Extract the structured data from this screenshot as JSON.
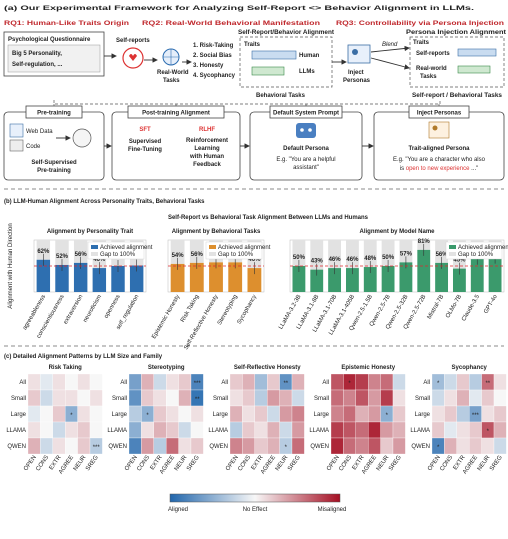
{
  "framework": {
    "title": "(a) Our Experimental  Framework for Analyzing Self-Report <> Behavior Alignment in LLMs.",
    "rq1": "RQ1: Human-Like Traits Origin",
    "rq2": "RQ2: Real-World Behavioral Manifestation",
    "rq3": "RQ3: Controllability via Persona Injection",
    "questionnaire": {
      "title": "Psychological Questionnaire",
      "lines": [
        "Big 5 Personality,",
        "Self-regulation, ..."
      ]
    },
    "self_reports": "Self-reports",
    "real_world_tasks": [
      "Real-World",
      "Tasks"
    ],
    "task_list": [
      "1. Risk-Taking",
      "2. Social Bias",
      "3. Honesty",
      "4. Sycophancy"
    ],
    "alignment_panel": {
      "title": "Self-Report/Behavior Alignment",
      "traits": "Traits",
      "human": "Human",
      "llms": "LLMs",
      "footer": "Behavioral Tasks"
    },
    "inject": [
      "Inject",
      "Personas"
    ],
    "persona_panel": {
      "title": "Persona Injection Alignment",
      "traits": "Traits",
      "blend": "Blend",
      "self_reports": "Self-reports",
      "real_world": [
        "Real-world",
        "Tasks"
      ],
      "footer": "Self-report / Behavioral Tasks"
    },
    "pretraining": {
      "title": "Pre-training",
      "web": "Web Data",
      "code": "Code",
      "caption": [
        "Self-Supervised",
        "Pre-training"
      ]
    },
    "posttraining": {
      "title": "Post-training Alignment",
      "sft": "SFT",
      "sft_caption": [
        "Supervised",
        "Fine-Tuning"
      ],
      "rlhf": "RLHF",
      "rlhf_caption": [
        "Reinforcement",
        "Learning",
        "with Human",
        "Feedback"
      ]
    },
    "default_prompt": {
      "title": "Default System Prompt",
      "persona": "Default Persona",
      "example": [
        "E.g. \"You are a helpful",
        "assistant\""
      ]
    },
    "inject_box": {
      "title": "Inject Personas",
      "persona": "Trait-aligned Persona",
      "example": [
        "E.g. \"You are a character who also",
        "is "
      ],
      "highlight": "open to new experience",
      "example_end": " ...\""
    }
  },
  "figure_b": {
    "section_title": "(b) LLM-Human Alignment Across Personality Traits, Behavioral Tasks",
    "title": "Self-Report vs Behavioral Task Alignment Between LLMs and Humans",
    "ylabel": "Alignment with Human Direction"
  },
  "figure_c": {
    "section_title": "(c) Detailed Alignment Patterns by LLM Size and Family",
    "colorbar_labels": [
      "Aligned",
      "No Effect",
      "Misaligned"
    ],
    "zlim": [
      -1,
      1
    ]
  },
  "chart_data": [
    {
      "type": "bar",
      "title": "Alignment by Personality Trait",
      "categories": [
        "agreeableness",
        "conscientiousness",
        "extraversion",
        "neuroticism",
        "openness",
        "self_regulation"
      ],
      "series": [
        {
          "name": "Achieved alignment",
          "color": "#2e6fb0",
          "values": [
            62,
            52,
            56,
            46,
            50,
            51
          ],
          "value_labels": [
            "62%",
            "52%",
            "56%",
            "46%",
            "50%",
            "51%"
          ]
        }
      ],
      "gap": {
        "name": "Gap to 100%",
        "color": "#e2e2e2"
      },
      "ylim": [
        0,
        100
      ],
      "reference_line": 50
    },
    {
      "type": "bar",
      "title": "Alignment by Behavioral Tasks",
      "categories": [
        "Epistemic Honesty",
        "Risk Taking",
        "Self-Reflective Honesty",
        "Stereotyping",
        "Sycophancy"
      ],
      "series": [
        {
          "name": "Achieved alignment",
          "color": "#dd8f2e",
          "values": [
            54,
            56,
            57,
            57,
            46
          ],
          "value_labels": [
            "54%",
            "56%",
            "57%",
            "57%",
            "46%"
          ]
        }
      ],
      "gap": {
        "name": "Gap to 100%",
        "color": "#e2e2e2"
      },
      "ylim": [
        0,
        100
      ],
      "reference_line": 50
    },
    {
      "type": "bar",
      "title": "Alignment by Model Name",
      "categories": [
        "LLaMA-3.2-3B",
        "LLaMA-3.1-8B",
        "LLaMA-3.1-70B",
        "LLaMA-3.1-405B",
        "Qwen-2.5-1.5B",
        "Qwen-2.5-7B",
        "Qwen-2.5-32B",
        "Qwen-2.5-72B",
        "Mistral-7B",
        "OLMo-7B",
        "Claude-3.5",
        "GPT-4o"
      ],
      "series": [
        {
          "name": "Achieved alignment",
          "color": "#3b9a6c",
          "values": [
            50,
            43,
            46,
            46,
            48,
            50,
            57,
            81,
            56,
            45,
            64,
            66
          ],
          "value_labels": [
            "50%",
            "43%",
            "46%",
            "46%",
            "48%",
            "50%",
            "57%",
            "81%",
            "56%",
            "45%",
            "64%",
            "66%"
          ]
        }
      ],
      "gap": {
        "name": "Gap to 100%",
        "color": "#e2e2e2"
      },
      "ylim": [
        0,
        100
      ],
      "reference_line": 50
    },
    {
      "type": "heatmap",
      "title": "Risk Taking",
      "rows": [
        "All",
        "Small",
        "Large",
        "LLAMA",
        "QWEN"
      ],
      "columns": [
        "OPEN",
        "CONS",
        "EXTR",
        "AGREE",
        "NEUR",
        "SREG"
      ],
      "values": [
        [
          0.1,
          -0.1,
          0.1,
          0.0,
          0.1,
          0.0
        ],
        [
          0.2,
          -0.2,
          0.1,
          0.1,
          0.0,
          0.1
        ],
        [
          -0.1,
          0.0,
          0.2,
          -0.5,
          0.1,
          0.0
        ],
        [
          0.1,
          0.0,
          -0.2,
          0.1,
          0.2,
          0.0
        ],
        [
          0.3,
          -0.2,
          0.1,
          0.0,
          0.2,
          -0.3
        ]
      ],
      "stars": [
        [
          null,
          null,
          null,
          null,
          null,
          null
        ],
        [
          null,
          null,
          null,
          null,
          null,
          null
        ],
        [
          null,
          null,
          null,
          "*",
          null,
          null
        ],
        [
          null,
          null,
          null,
          null,
          null,
          null
        ],
        [
          null,
          null,
          null,
          null,
          null,
          "***"
        ]
      ]
    },
    {
      "type": "heatmap",
      "title": "Stereotyping",
      "rows": [
        "All",
        "Small",
        "Large",
        "LLAMA",
        "QWEN"
      ],
      "columns": [
        "OPEN",
        "CONS",
        "EXTR",
        "AGREE",
        "NEUR",
        "SREG"
      ],
      "values": [
        [
          -0.6,
          0.3,
          -0.2,
          0.1,
          0.2,
          -0.8
        ],
        [
          -0.7,
          0.2,
          0.1,
          0.0,
          0.3,
          -0.9
        ],
        [
          -0.3,
          -0.5,
          0.2,
          0.1,
          0.0,
          0.1
        ],
        [
          -0.5,
          0.1,
          0.3,
          0.2,
          -0.2,
          0.0
        ],
        [
          -0.8,
          0.4,
          -0.3,
          0.6,
          0.1,
          0.2
        ]
      ],
      "stars": [
        [
          null,
          null,
          null,
          null,
          null,
          "***"
        ],
        [
          null,
          null,
          null,
          null,
          null,
          "**"
        ],
        [
          null,
          "*",
          null,
          null,
          null,
          null
        ],
        [
          null,
          null,
          null,
          null,
          null,
          null
        ],
        [
          null,
          null,
          null,
          null,
          null,
          null
        ]
      ]
    },
    {
      "type": "heatmap",
      "title": "Self-Reflective Honesty",
      "rows": [
        "All",
        "Small",
        "Large",
        "LLAMA",
        "QWEN"
      ],
      "columns": [
        "OPEN",
        "CONS",
        "EXTR",
        "AGREE",
        "NEUR",
        "SREG"
      ],
      "values": [
        [
          0.2,
          0.3,
          -0.4,
          0.2,
          -0.7,
          0.3
        ],
        [
          0.1,
          0.2,
          -0.3,
          0.4,
          0.3,
          -0.2
        ],
        [
          0.3,
          0.1,
          0.2,
          -0.2,
          0.4,
          0.5
        ],
        [
          -0.3,
          0.2,
          0.1,
          0.3,
          -0.2,
          0.4
        ],
        [
          0.5,
          0.4,
          0.2,
          0.3,
          -0.3,
          0.6
        ]
      ],
      "stars": [
        [
          null,
          null,
          null,
          null,
          "**",
          null
        ],
        [
          null,
          null,
          null,
          null,
          null,
          null
        ],
        [
          null,
          null,
          null,
          null,
          null,
          null
        ],
        [
          null,
          null,
          null,
          null,
          null,
          null
        ],
        [
          null,
          null,
          null,
          null,
          "*",
          null
        ]
      ]
    },
    {
      "type": "heatmap",
      "title": "Epistemic Honesty",
      "rows": [
        "All",
        "Small",
        "Large",
        "LLAMA",
        "QWEN"
      ],
      "columns": [
        "OPEN",
        "CONS",
        "EXTR",
        "AGREE",
        "NEUR",
        "SREG"
      ],
      "values": [
        [
          0.7,
          0.9,
          0.8,
          0.5,
          0.6,
          -0.2
        ],
        [
          0.6,
          0.5,
          0.7,
          0.4,
          0.8,
          0.1
        ],
        [
          0.5,
          0.6,
          0.3,
          0.4,
          -0.5,
          0.2
        ],
        [
          0.8,
          0.7,
          0.6,
          0.9,
          0.4,
          0.3
        ],
        [
          0.9,
          0.6,
          0.5,
          0.7,
          0.2,
          0.4
        ]
      ],
      "stars": [
        [
          null,
          "*",
          null,
          null,
          null,
          null
        ],
        [
          null,
          null,
          null,
          null,
          null,
          null
        ],
        [
          null,
          null,
          null,
          null,
          "*",
          null
        ],
        [
          null,
          null,
          null,
          null,
          null,
          null
        ],
        [
          null,
          null,
          null,
          null,
          null,
          null
        ]
      ]
    },
    {
      "type": "heatmap",
      "title": "Sycophancy",
      "rows": [
        "All",
        "Small",
        "Large",
        "LLAMA",
        "QWEN"
      ],
      "columns": [
        "OPEN",
        "CONS",
        "EXTR",
        "AGREE",
        "NEUR",
        "SREG"
      ],
      "values": [
        [
          -0.4,
          -0.2,
          0.2,
          -0.3,
          0.6,
          0.1
        ],
        [
          -0.2,
          0.1,
          0.3,
          -0.1,
          0.2,
          0.0
        ],
        [
          0.1,
          0.2,
          -0.3,
          -0.6,
          0.1,
          0.2
        ],
        [
          0.2,
          -0.1,
          0.1,
          0.2,
          0.7,
          0.3
        ],
        [
          -0.8,
          0.3,
          0.1,
          0.2,
          0.1,
          -0.2
        ]
      ],
      "stars": [
        [
          "*",
          null,
          null,
          null,
          "**",
          null
        ],
        [
          null,
          null,
          null,
          null,
          null,
          null
        ],
        [
          null,
          null,
          null,
          "***",
          null,
          null
        ],
        [
          null,
          null,
          null,
          null,
          "*",
          null
        ],
        [
          "*",
          null,
          null,
          null,
          null,
          null
        ]
      ]
    }
  ]
}
